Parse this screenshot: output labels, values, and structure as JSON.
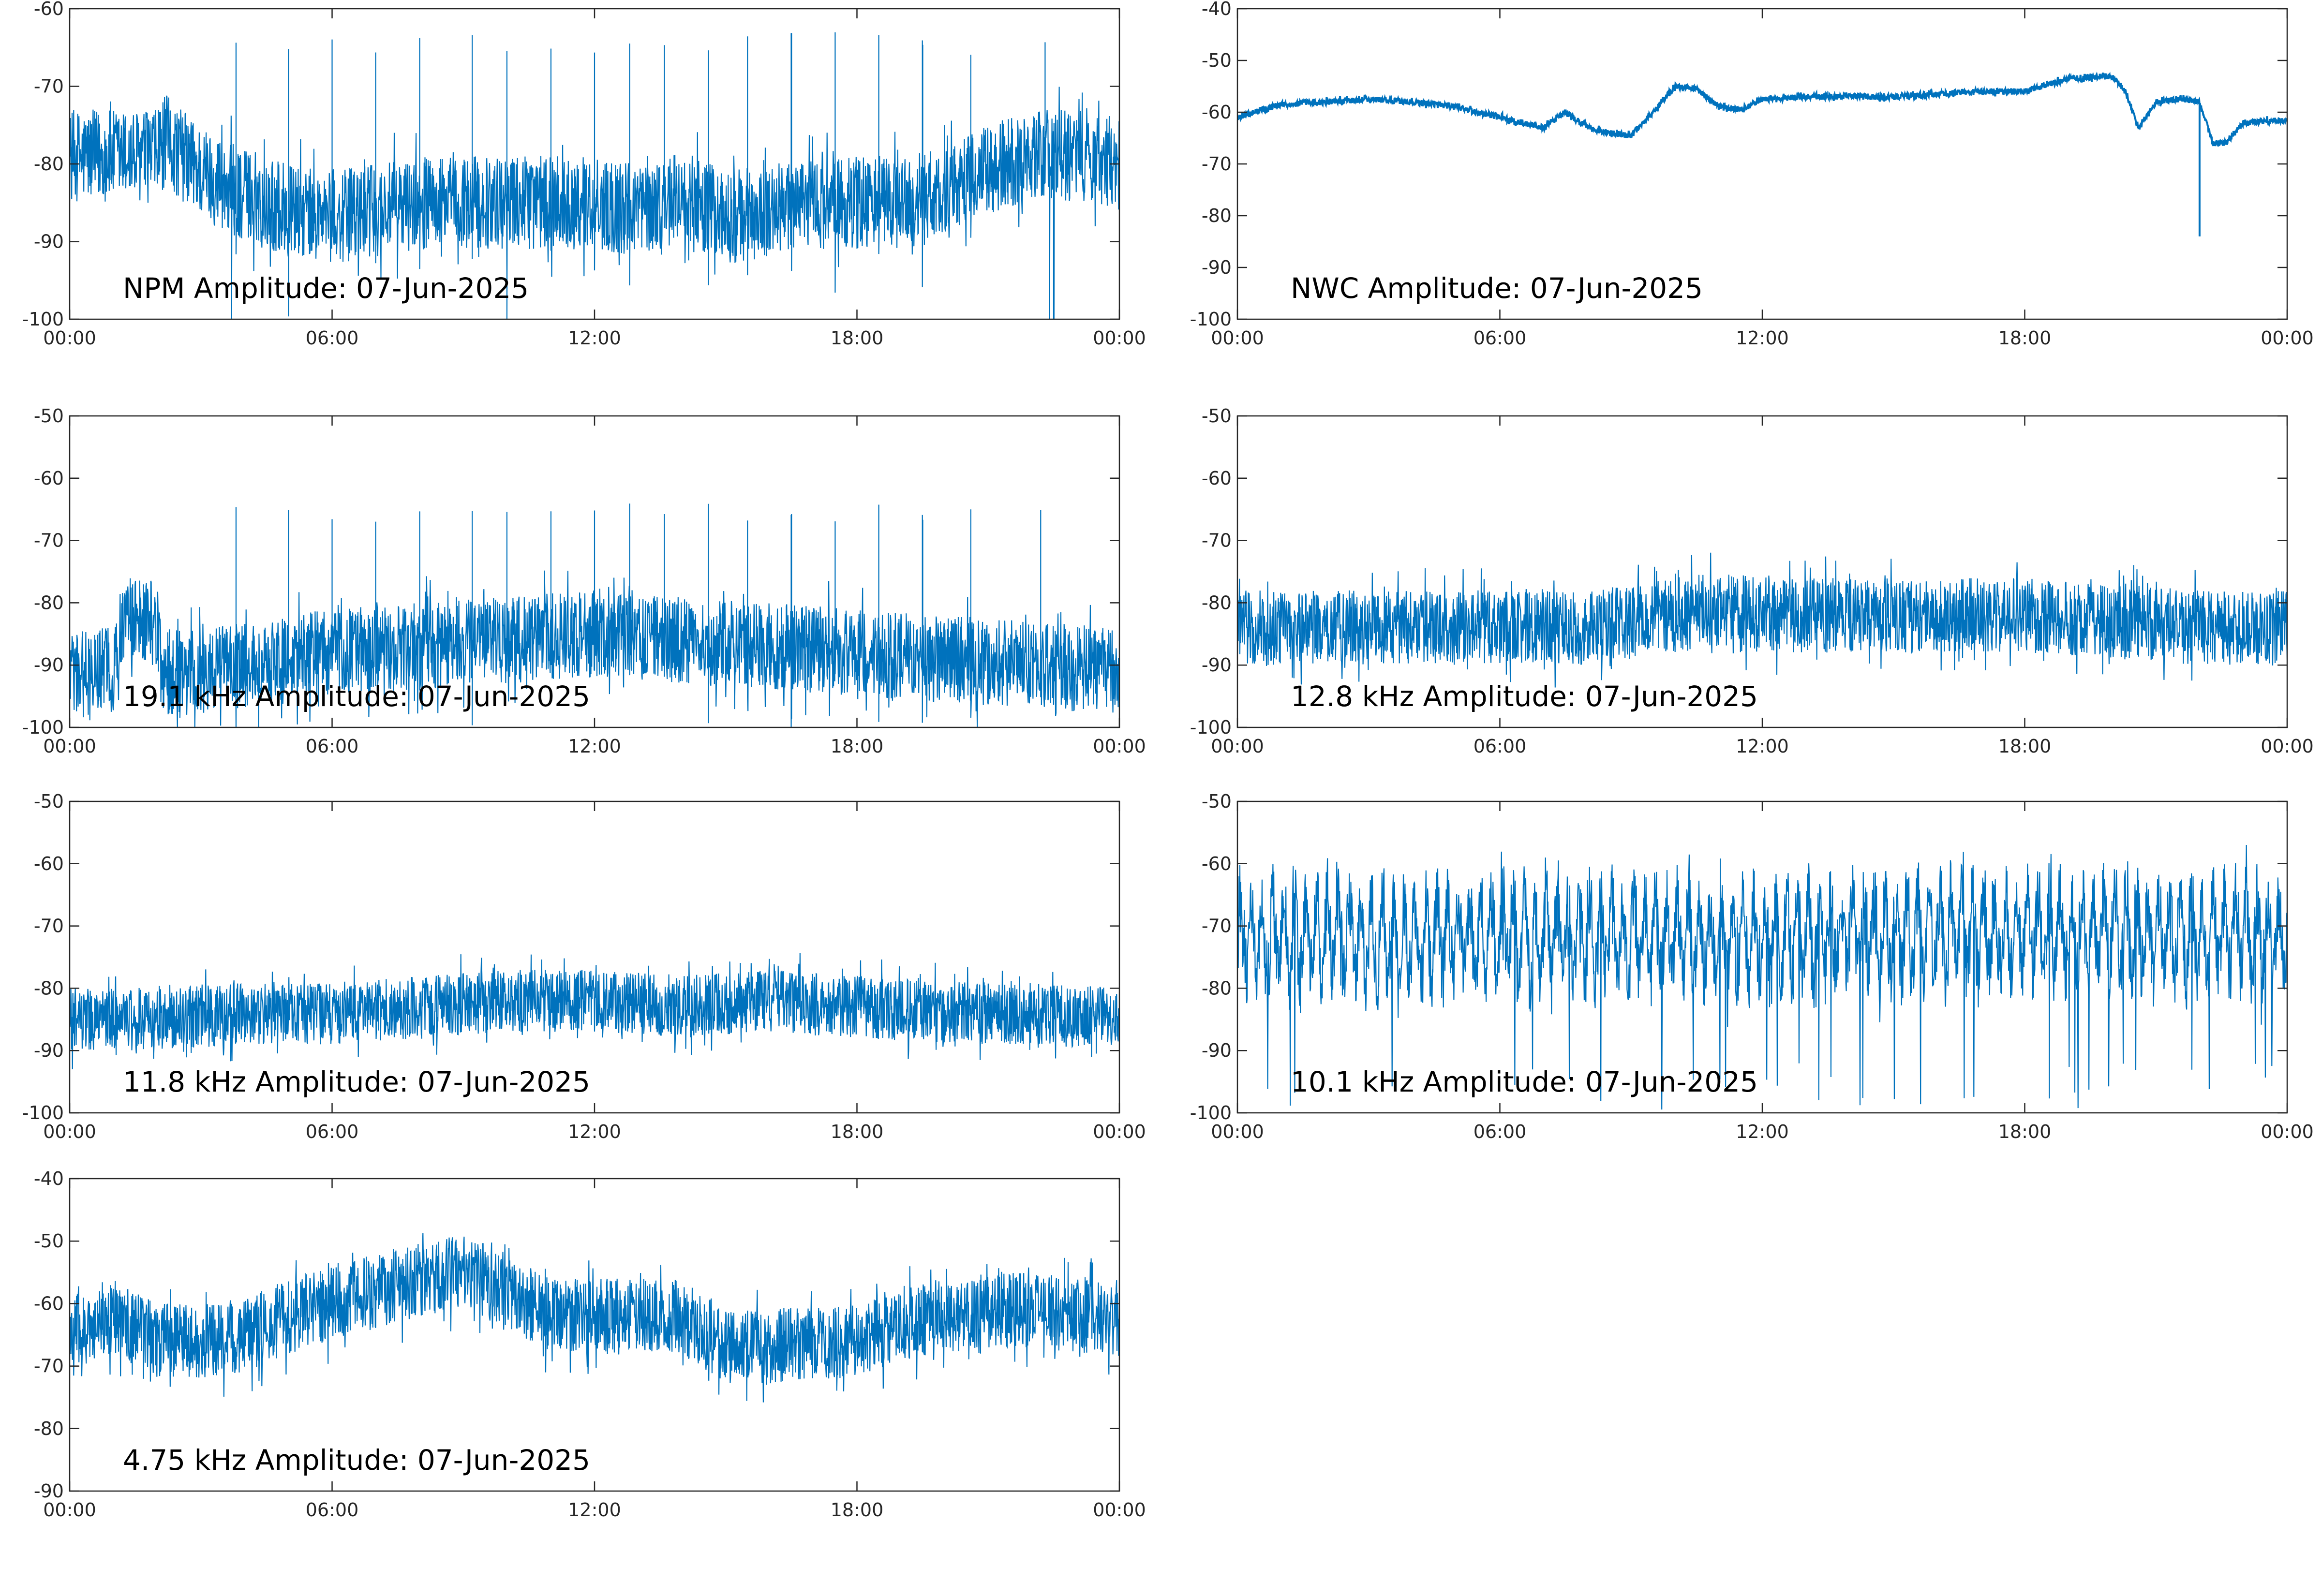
{
  "chart_data": [
    {
      "type": "line",
      "title": "NPM Amplitude: 07-Jun-2025",
      "xticks": [
        "00:00",
        "06:00",
        "12:00",
        "18:00",
        "00:00"
      ],
      "xlim_hours": [
        0,
        24
      ],
      "ylim": [
        -100,
        -60
      ],
      "yticks": [
        -60,
        -70,
        -80,
        -90,
        -100
      ],
      "color": "#0072BD",
      "grid": false,
      "series": [
        {
          "x_hours": [
            0,
            1,
            2,
            2.2,
            3,
            4,
            5,
            6,
            7,
            8,
            9,
            10,
            11,
            12,
            13,
            14,
            15,
            16,
            17,
            18,
            19,
            20,
            21,
            22,
            23,
            24
          ],
          "values": [
            -79,
            -79,
            -79,
            -77,
            -81,
            -84,
            -86,
            -87,
            -86,
            -85,
            -85,
            -85,
            -85,
            -85,
            -86,
            -84,
            -87,
            -86,
            -85,
            -85,
            -85,
            -84,
            -81,
            -79,
            -79,
            -80
          ],
          "noise": 6,
          "spikes_up_hours": [
            3.8,
            5.0,
            6.0,
            7.0,
            8.0,
            9.2,
            10.0,
            11.0,
            12.0,
            12.8,
            13.6,
            14.6,
            15.5,
            16.5,
            17.5,
            18.5,
            19.5,
            20.6,
            22.3
          ],
          "spike_top": -66,
          "dropouts_hours": [
            3.7,
            3.9,
            22.4,
            22.5
          ]
        }
      ]
    },
    {
      "type": "line",
      "title": "NWC Amplitude: 07-Jun-2025",
      "xticks": [
        "00:00",
        "06:00",
        "12:00",
        "18:00",
        "00:00"
      ],
      "xlim_hours": [
        0,
        24
      ],
      "ylim": [
        -100,
        -40
      ],
      "yticks": [
        -40,
        -50,
        -60,
        -70,
        -80,
        -90,
        -100
      ],
      "color": "#0072BD",
      "grid": false,
      "series": [
        {
          "x_hours": [
            0,
            1,
            2,
            3,
            4,
            5,
            6,
            7,
            7.5,
            8,
            8.5,
            9,
            9.5,
            10,
            10.5,
            11,
            11.5,
            12,
            13,
            14,
            15,
            16,
            17,
            18,
            19,
            20,
            20.3,
            20.6,
            21,
            21.5,
            22,
            22.3,
            22.6,
            23,
            24
          ],
          "values": [
            -61,
            -58.5,
            -58,
            -57.5,
            -58,
            -59,
            -61,
            -63,
            -60,
            -63,
            -64,
            -64.5,
            -60,
            -55,
            -55.5,
            -59,
            -59.5,
            -57.5,
            -57,
            -57,
            -57,
            -56.5,
            -56,
            -56,
            -53.5,
            -53,
            -56,
            -63,
            -58,
            -57.5,
            -58,
            -66,
            -66,
            -62,
            -61.5
          ],
          "noise": 0.6,
          "dips_hours": [
            22.0
          ],
          "dip_bottom": -84
        }
      ]
    },
    {
      "type": "line",
      "title": "19.1 kHz Amplitude: 07-Jun-2025",
      "xticks": [
        "00:00",
        "06:00",
        "12:00",
        "18:00",
        "00:00"
      ],
      "xlim_hours": [
        0,
        24
      ],
      "ylim": [
        -100,
        -50
      ],
      "yticks": [
        -50,
        -60,
        -70,
        -80,
        -90,
        -100
      ],
      "color": "#0072BD",
      "grid": false,
      "series": [
        {
          "x_hours": [
            0,
            1,
            1.2,
            2.0,
            2.1,
            3,
            4,
            6,
            8,
            10,
            12,
            14,
            16,
            18,
            20,
            22,
            24
          ],
          "values": [
            -91,
            -91,
            -83,
            -83,
            -91,
            -91,
            -90,
            -88,
            -87,
            -86,
            -85,
            -86,
            -87,
            -88,
            -89,
            -90,
            -91
          ],
          "noise": 7,
          "spikes_up_hours": [
            3.8,
            5.0,
            6.0,
            7.0,
            8.0,
            9.2,
            10.0,
            11.0,
            12.0,
            12.8,
            13.6,
            14.6,
            15.5,
            16.5,
            17.5,
            18.5,
            19.5,
            20.6,
            22.2
          ],
          "spike_top": -67
        }
      ]
    },
    {
      "type": "line",
      "title": "12.8 kHz Amplitude: 07-Jun-2025",
      "xticks": [
        "00:00",
        "06:00",
        "12:00",
        "18:00",
        "00:00"
      ],
      "xlim_hours": [
        0,
        24
      ],
      "ylim": [
        -100,
        -50
      ],
      "yticks": [
        -50,
        -60,
        -70,
        -80,
        -90,
        -100
      ],
      "color": "#0072BD",
      "grid": false,
      "series": [
        {
          "x_hours": [
            0,
            2,
            4,
            6,
            8,
            10,
            11,
            12,
            14,
            16,
            18,
            20,
            22,
            24
          ],
          "values": [
            -84,
            -84,
            -84,
            -84,
            -84,
            -82,
            -81,
            -82,
            -82,
            -82,
            -82,
            -83,
            -84,
            -84
          ],
          "noise": 6
        }
      ]
    },
    {
      "type": "line",
      "title": "11.8 kHz Amplitude: 07-Jun-2025",
      "xticks": [
        "00:00",
        "06:00",
        "12:00",
        "18:00",
        "00:00"
      ],
      "xlim_hours": [
        0,
        24
      ],
      "ylim": [
        -100,
        -50
      ],
      "yticks": [
        -50,
        -60,
        -70,
        -80,
        -90,
        -100
      ],
      "color": "#0072BD",
      "grid": false,
      "series": [
        {
          "x_hours": [
            0,
            2,
            4,
            6,
            8,
            10,
            11,
            12,
            14,
            16,
            18,
            20,
            22,
            24
          ],
          "values": [
            -85,
            -85,
            -84,
            -84,
            -83,
            -82,
            -82,
            -82,
            -83,
            -82,
            -83,
            -84,
            -84,
            -85
          ],
          "noise": 5
        }
      ]
    },
    {
      "type": "line",
      "title": "10.1 kHz Amplitude: 07-Jun-2025",
      "xticks": [
        "00:00",
        "06:00",
        "12:00",
        "18:00",
        "00:00"
      ],
      "xlim_hours": [
        0,
        24
      ],
      "ylim": [
        -100,
        -50
      ],
      "yticks": [
        -50,
        -60,
        -70,
        -80,
        -90,
        -100
      ],
      "color": "#0072BD",
      "grid": false,
      "series": [
        {
          "x_hours": [
            0,
            4,
            8,
            12,
            16,
            20,
            24
          ],
          "values": [
            -72,
            -72,
            -72,
            -72,
            -71,
            -71,
            -72
          ],
          "noise": 6,
          "oscillation_amplitude": 6,
          "oscillation_period_hours": 0.25,
          "deep_dips_bottom": -100
        }
      ]
    },
    {
      "type": "line",
      "title": "4.75 kHz Amplitude: 07-Jun-2025",
      "xticks": [
        "00:00",
        "06:00",
        "12:00",
        "18:00",
        "00:00"
      ],
      "xlim_hours": [
        0,
        24
      ],
      "ylim": [
        -90,
        -40
      ],
      "yticks": [
        -40,
        -50,
        -60,
        -70,
        -80,
        -90
      ],
      "color": "#0072BD",
      "grid": false,
      "series": [
        {
          "x_hours": [
            0,
            1,
            2,
            3,
            4,
            5,
            6,
            7,
            8,
            9,
            10,
            11,
            12,
            13,
            14,
            15,
            16,
            17,
            18,
            19,
            20,
            21,
            22,
            23,
            24
          ],
          "values": [
            -65,
            -62,
            -66,
            -66,
            -65,
            -62,
            -60,
            -58,
            -56,
            -55,
            -58,
            -62,
            -62,
            -62,
            -62,
            -67,
            -67,
            -66,
            -66,
            -63,
            -62,
            -61,
            -61,
            -62,
            -63
          ],
          "noise": 6
        }
      ]
    }
  ]
}
